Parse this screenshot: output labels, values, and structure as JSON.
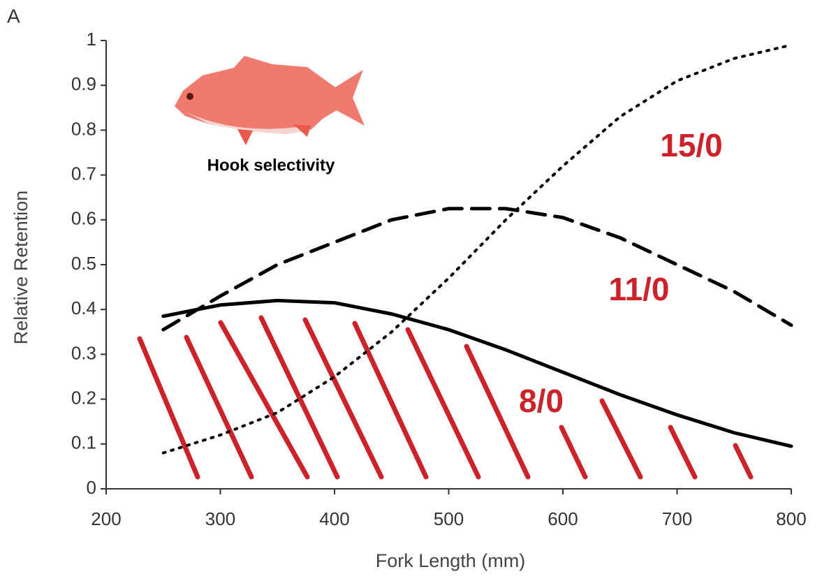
{
  "chart_data": {
    "type": "line",
    "panel_label": "A",
    "annotation": "Hook selectivity",
    "xlabel": "Fork Length  (mm)",
    "ylabel": "Relative  Retention",
    "xlim": [
      200,
      800
    ],
    "xticks": [
      200,
      300,
      400,
      500,
      600,
      700,
      800
    ],
    "ylim": [
      0,
      1
    ],
    "yticks": [
      0,
      0.1,
      0.2,
      0.3,
      0.4,
      0.5,
      0.6,
      0.7,
      0.8,
      0.9,
      1
    ],
    "x": [
      250,
      300,
      350,
      400,
      450,
      500,
      550,
      600,
      650,
      700,
      750,
      800
    ],
    "series": [
      {
        "name": "8/0",
        "color": "#000000",
        "style": "solid",
        "values": [
          0.385,
          0.41,
          0.42,
          0.415,
          0.39,
          0.355,
          0.31,
          0.26,
          0.21,
          0.165,
          0.125,
          0.095
        ]
      },
      {
        "name": "11/0",
        "color": "#000000",
        "style": "dashed",
        "values": [
          0.355,
          0.43,
          0.5,
          0.55,
          0.6,
          0.625,
          0.625,
          0.605,
          0.56,
          0.5,
          0.44,
          0.365
        ]
      },
      {
        "name": "15/0",
        "color": "#000000",
        "style": "dotted",
        "values": [
          0.08,
          0.12,
          0.17,
          0.25,
          0.35,
          0.47,
          0.6,
          0.72,
          0.83,
          0.91,
          0.96,
          0.99
        ]
      }
    ]
  }
}
